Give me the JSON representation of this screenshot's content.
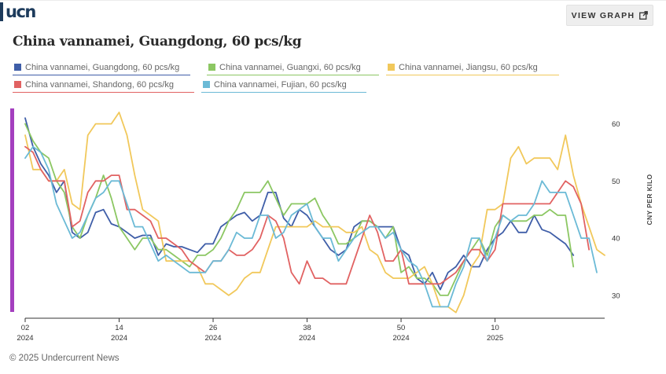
{
  "brand": {
    "logo_text": "ucn"
  },
  "header": {
    "view_graph_label": "VIEW GRAPH",
    "view_graph_icon": "external-link-icon"
  },
  "title": "China vannamei, Guangdong, 60 pcs/kg",
  "footer": "© 2025 Undercurrent News",
  "accent_color": "#a43fbf",
  "chart_data": {
    "type": "line",
    "title": "China vannamei, Guangdong, 60 pcs/kg",
    "ylabel": "CNY PER KILO",
    "xlabel": "",
    "ylim": [
      26,
      62
    ],
    "y_ticks": [
      30,
      40,
      50,
      60
    ],
    "y_axis_position": "right",
    "grid": false,
    "legend_position": "top",
    "x_ticks": [
      {
        "week": "02",
        "year": "2024"
      },
      {
        "week": "14",
        "year": "2024"
      },
      {
        "week": "26",
        "year": "2024"
      },
      {
        "week": "38",
        "year": "2024"
      },
      {
        "week": "50",
        "year": "2024"
      },
      {
        "week": "10",
        "year": "2025"
      }
    ],
    "x_tick_weeks_since_start": [
      0,
      12,
      24,
      36,
      48,
      60
    ],
    "series": [
      {
        "name": "China vannamei, Guangdong, 60 pcs/kg",
        "color": "#3f5ea8",
        "values": [
          61,
          56,
          53,
          51,
          48,
          50,
          41,
          40,
          41,
          44.5,
          45,
          42.5,
          42,
          41,
          40,
          40.5,
          40.5,
          37,
          39,
          38.5,
          38.5,
          38,
          37.5,
          39,
          39,
          42,
          43,
          44,
          44.5,
          43,
          44,
          48,
          48,
          43.5,
          42,
          45,
          44,
          42,
          40,
          38,
          37,
          38,
          42,
          43,
          43,
          42,
          42,
          42,
          38,
          37,
          33,
          32,
          34,
          31,
          34,
          35,
          37,
          35,
          35,
          38,
          40,
          41,
          43,
          41,
          41,
          44,
          41.5,
          41,
          40,
          39,
          37
        ]
      },
      {
        "name": "China vannamei, Guangxi, 60 pcs/kg",
        "color": "#8cc763",
        "values": [
          60,
          57,
          55,
          54,
          50,
          48,
          42,
          40,
          44,
          47,
          51,
          47,
          42,
          40,
          38,
          40,
          40,
          38,
          38,
          37,
          36,
          35,
          37,
          37,
          38,
          40,
          43,
          45,
          48,
          48,
          48,
          50,
          47,
          44,
          46,
          46,
          46,
          47,
          44,
          42,
          39,
          39,
          40,
          43,
          43,
          42,
          40,
          42,
          34,
          35,
          33,
          33,
          32,
          30,
          30,
          33,
          36,
          38,
          40,
          37,
          42,
          44,
          43,
          43,
          43,
          44,
          44,
          45,
          44,
          44,
          35
        ]
      },
      {
        "name": "China vannamei, Jiangsu, 60 pcs/kg",
        "color": "#f1c85b",
        "values": [
          58,
          52,
          52,
          50,
          50,
          52,
          46,
          45,
          58,
          60,
          60,
          60,
          62,
          58,
          51,
          45,
          44,
          43,
          36,
          36,
          36,
          36,
          35,
          32,
          32,
          31,
          30,
          31,
          33,
          34,
          34,
          38,
          42,
          42,
          42,
          42,
          42,
          43,
          42,
          42,
          42,
          41,
          41,
          42,
          38,
          37,
          34,
          33,
          33,
          33,
          34,
          35,
          32,
          28,
          28,
          27,
          30,
          35,
          37,
          45,
          45,
          46,
          54,
          56,
          53,
          54,
          54,
          54,
          52,
          58,
          51,
          46,
          42,
          38,
          37
        ]
      },
      {
        "name": "China vannamei, Shandong, 60 pcs/kg",
        "color": "#e16262",
        "values": [
          56,
          55,
          52,
          50,
          50,
          50,
          42,
          43,
          48,
          50,
          50,
          51,
          51,
          45,
          45,
          44,
          43,
          40,
          40,
          39,
          38,
          36,
          35,
          34,
          36,
          36,
          38,
          37,
          37,
          38,
          40,
          44,
          43,
          40,
          34,
          32,
          36,
          33,
          33,
          32,
          32,
          32,
          36,
          40,
          44,
          41,
          36,
          36,
          38,
          32,
          32,
          32,
          32,
          32,
          33,
          34,
          36,
          38,
          38,
          36,
          38,
          46,
          46,
          46,
          46,
          46,
          46,
          46,
          48,
          50,
          49,
          46,
          38
        ]
      },
      {
        "name": "China vannamei, Fujian, 60 pcs/kg",
        "color": "#6bbad6",
        "values": [
          54,
          56,
          55,
          52,
          46,
          43,
          40,
          41,
          44,
          47,
          48,
          50,
          50,
          46,
          42,
          42,
          39,
          36,
          37,
          36,
          35,
          34,
          34,
          34,
          36,
          36,
          38,
          41,
          40,
          40,
          44,
          44,
          40,
          41,
          44,
          45,
          46,
          42,
          40,
          40,
          36,
          38,
          40,
          41,
          42,
          42,
          40,
          41,
          38,
          36,
          35,
          32,
          28,
          28,
          28,
          32,
          35,
          40,
          40,
          36,
          40,
          44,
          43,
          44,
          44,
          46,
          50,
          48,
          48,
          48,
          44,
          40,
          40,
          34
        ]
      }
    ]
  }
}
